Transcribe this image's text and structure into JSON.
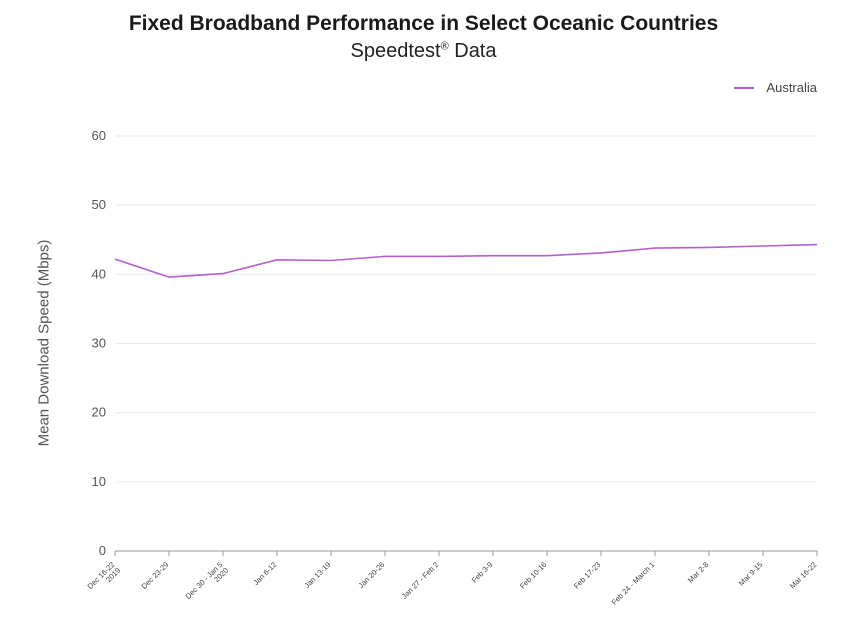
{
  "chart_data": {
    "type": "line",
    "title": "Fixed Broadband Performance in Select Oceanic Countries",
    "subtitle": "Speedtest",
    "subtitle_mark": "®",
    "subtitle_suffix": " Data",
    "ylabel": "Mean Download Speed (Mbps)",
    "ylim": [
      0,
      60
    ],
    "yticks": [
      0,
      10,
      20,
      30,
      40,
      50,
      60
    ],
    "grid": true,
    "legend_position": "top-right",
    "categories": [
      [
        "Dec 16-22",
        "2019"
      ],
      [
        "Dec 23-29"
      ],
      [
        "Dec 30 - Jan 5",
        "2020"
      ],
      [
        "Jan 6-12"
      ],
      [
        "Jan 13-19"
      ],
      [
        "Jan 20-26"
      ],
      [
        "Jan 27 - Feb 2"
      ],
      [
        "Feb 3-9"
      ],
      [
        "Feb 10-16"
      ],
      [
        "Feb 17-23"
      ],
      [
        "Feb 24 - March 1"
      ],
      [
        "Mar 2-8"
      ],
      [
        "Mar 9-15"
      ],
      [
        "Mar 16-22"
      ]
    ],
    "series": [
      {
        "name": "Australia",
        "color": "#b35fd1",
        "values": [
          42.2,
          39.6,
          40.1,
          42.1,
          42.0,
          42.6,
          42.6,
          42.7,
          42.7,
          43.1,
          43.8,
          43.9,
          44.1,
          44.3
        ]
      }
    ]
  }
}
